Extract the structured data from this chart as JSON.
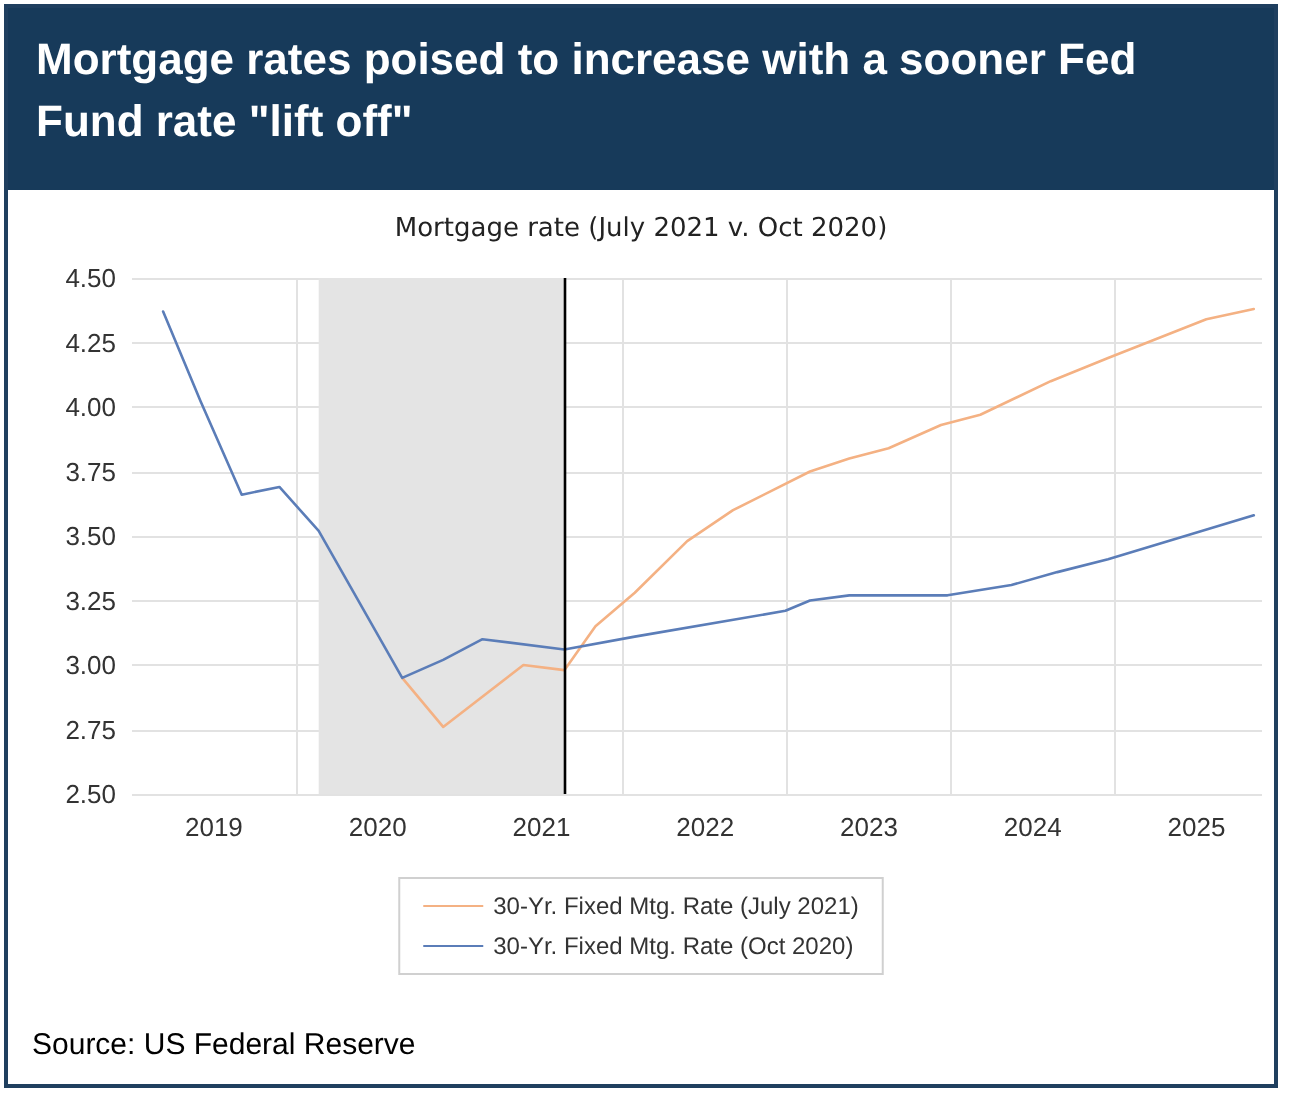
{
  "chart_data": {
    "type": "line",
    "title": "Mortgage rates poised to increase with a sooner Fed Fund rate \"lift off\"",
    "subtitle": "Mortgage rate (July 2021 v. Oct 2020)",
    "annotations": [
      "Source: US Federal Reserve"
    ],
    "series": [
      {
        "name": "30-Yr. Fixed Mtg. Rate (July 2021)",
        "color": "#f4b183",
        "x": [
          2020.65,
          2020.9,
          2021.39,
          2021.64,
          2021.83,
          2022.07,
          2022.39,
          2022.67,
          2023.14,
          2023.38,
          2023.62,
          2023.94,
          2024.18,
          2024.61,
          2024.96,
          2025.56,
          2025.85
        ],
        "values": [
          2.95,
          2.76,
          3.0,
          2.98,
          3.15,
          3.28,
          3.48,
          3.6,
          3.75,
          3.8,
          3.84,
          3.93,
          3.97,
          4.1,
          4.19,
          4.34,
          4.38
        ]
      },
      {
        "name": "30-Yr. Fixed Mtg. Rate (Oct 2020)",
        "color": "#5b7db8",
        "x": [
          2019.19,
          2019.42,
          2019.67,
          2019.9,
          2020.14,
          2020.65,
          2020.9,
          2021.14,
          2021.64,
          2022.07,
          2022.99,
          2023.14,
          2023.38,
          2023.98,
          2024.37,
          2024.65,
          2024.96,
          2025.85
        ],
        "values": [
          4.37,
          4.02,
          3.66,
          3.69,
          3.52,
          2.95,
          3.02,
          3.1,
          3.06,
          3.11,
          3.21,
          3.25,
          3.27,
          3.27,
          3.31,
          3.36,
          3.41,
          3.58
        ]
      }
    ],
    "xlim": [
      2019,
      2025.9
    ],
    "xticks": [
      {
        "value": 2019.5,
        "label": "2019"
      },
      {
        "value": 2020,
        "label": null
      },
      {
        "value": 2020.5,
        "label": "2020"
      },
      {
        "value": 2021.5,
        "label": "2021"
      },
      {
        "value": 2022,
        "label": null
      },
      {
        "value": 2022.5,
        "label": "2022"
      },
      {
        "value": 2023,
        "label": null
      },
      {
        "value": 2023.5,
        "label": "2023"
      },
      {
        "value": 2024,
        "label": null
      },
      {
        "value": 2024.5,
        "label": "2024"
      },
      {
        "value": 2025,
        "label": null
      },
      {
        "value": 2025.5,
        "label": "2025"
      }
    ],
    "ylim": [
      2.5,
      4.5
    ],
    "yticks": [
      {
        "value": 2.5,
        "label": "2.50"
      },
      {
        "value": 2.75,
        "label": "2.75"
      },
      {
        "value": 3,
        "label": "3.00"
      },
      {
        "value": 3.25,
        "label": "3.25"
      },
      {
        "value": 3.5,
        "label": "3.50"
      },
      {
        "value": 3.75,
        "label": "3.75"
      },
      {
        "value": 4,
        "label": "4.00"
      },
      {
        "value": 4.25,
        "label": "4.25"
      },
      {
        "value": 4.5,
        "label": "4.50"
      }
    ],
    "bands": [
      {
        "axis": "x",
        "from": 2020.14,
        "to": 2021.64,
        "color": "#e4e4e4"
      }
    ],
    "ref_lines": [
      {
        "axis": "x",
        "value": 2021.64,
        "color": "#000000"
      }
    ],
    "grid": true,
    "legend": "bottom",
    "marker": "none",
    "line_style": "solid"
  }
}
